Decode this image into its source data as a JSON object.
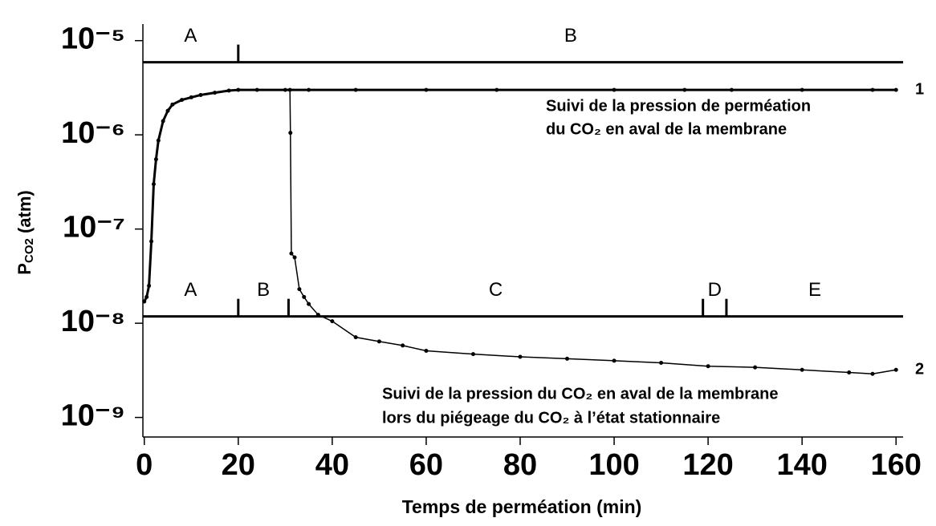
{
  "chart_data": {
    "type": "line",
    "log_y": true,
    "xlabel": "Temps de perméation (min)",
    "ylabel": [
      "P",
      "CO2",
      " (atm)"
    ],
    "xlim": [
      -0.3,
      161.5
    ],
    "ylim": [
      6.2e-10,
      1.5e-05
    ],
    "xticks": [
      0,
      20,
      40,
      60,
      80,
      100,
      120,
      140,
      160
    ],
    "yticks": [
      {
        "value": 1e-05,
        "label": "10⁻⁵"
      },
      {
        "value": 1e-06,
        "label": "10⁻⁶"
      },
      {
        "value": 1e-07,
        "label": "10⁻⁷"
      },
      {
        "value": 1e-08,
        "label": "10⁻⁸"
      },
      {
        "value": 1e-09,
        "label": "10⁻⁹"
      }
    ],
    "color": "#000000",
    "series": [
      {
        "name": "1",
        "x": [
          0,
          0.5,
          1,
          1.5,
          2,
          2.5,
          3,
          4,
          5,
          6,
          8,
          10,
          12,
          15,
          18,
          20,
          24,
          30,
          35,
          45,
          60,
          75,
          100,
          115,
          125,
          140,
          155,
          160
        ],
        "values": [
          1.7e-08,
          1.9e-08,
          2.5e-08,
          7.4e-08,
          3e-07,
          5.5e-07,
          8.7e-07,
          1.4e-06,
          1.8e-06,
          2.1e-06,
          2.35e-06,
          2.5e-06,
          2.65e-06,
          2.8e-06,
          2.95e-06,
          3e-06,
          3e-06,
          3e-06,
          3e-06,
          3e-06,
          3e-06,
          3e-06,
          3e-06,
          3e-06,
          3e-06,
          3e-06,
          3e-06,
          3e-06
        ]
      },
      {
        "name": "2",
        "x": [
          31,
          31.1,
          31.3,
          32,
          33,
          34,
          35,
          37,
          40,
          45,
          50,
          55,
          60,
          70,
          80,
          90,
          100,
          110,
          120,
          130,
          140,
          150,
          155,
          160
        ],
        "values": [
          3e-06,
          1.05e-06,
          5.5e-08,
          5e-08,
          2.3e-08,
          1.9e-08,
          1.6e-08,
          1.23e-08,
          1.05e-08,
          7.1e-09,
          6.4e-09,
          5.8e-09,
          5.1e-09,
          4.7e-09,
          4.4e-09,
          4.2e-09,
          4e-09,
          3.8e-09,
          3.5e-09,
          3.4e-09,
          3.2e-09,
          3e-09,
          2.9e-09,
          3.2e-09
        ]
      }
    ],
    "phases": [
      {
        "y": 5.9e-06,
        "boundaries": [
          20
        ],
        "labels": [
          "A",
          "B"
        ]
      },
      {
        "y": 1.18e-08,
        "boundaries": [
          20,
          30.7,
          118.9,
          123.9
        ],
        "labels": [
          "A",
          "B",
          "C",
          "D",
          "E"
        ]
      }
    ],
    "annotations": [
      [
        "Suivi de la pression de perméation",
        "du CO₂ en aval de la membrane"
      ],
      [
        "Suivi de la pression du CO₂ en aval de la membrane",
        "lors du piégeage du CO₂ à l’état stationnaire"
      ]
    ]
  }
}
